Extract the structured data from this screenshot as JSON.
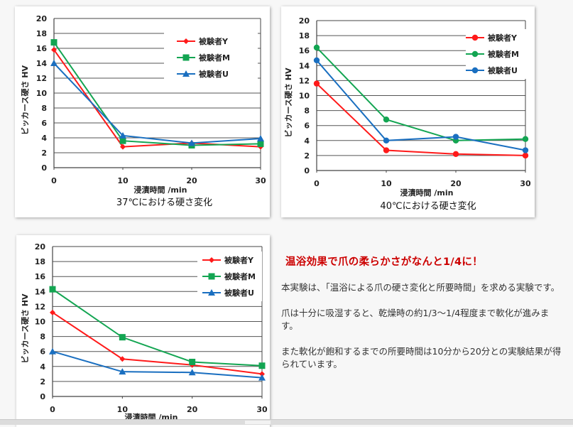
{
  "colors": {
    "subject_y": "#ff1a1a",
    "subject_m": "#13a552",
    "subject_u": "#1a6fc0",
    "headline": "#cc0000"
  },
  "chart_data": [
    {
      "type": "line",
      "title": "37℃における硬さ変化",
      "xlabel": "浸漬時間 /min",
      "ylabel": "ビッカース硬さ HV",
      "x": [
        0,
        10,
        20,
        30
      ],
      "xticks": [
        "0",
        "10",
        "20",
        "30"
      ],
      "yticks": [
        "0",
        "2",
        "4",
        "6",
        "8",
        "10",
        "12",
        "14",
        "16",
        "18",
        "20"
      ],
      "ylim": [
        0,
        20
      ],
      "grid": true,
      "legend_position": "top-right",
      "marker_style": "mixed",
      "series": [
        {
          "name": "被験者Y",
          "marker": "diamond",
          "values": [
            15.8,
            2.8,
            3.3,
            2.8
          ]
        },
        {
          "name": "被験者M",
          "marker": "square",
          "values": [
            16.8,
            3.6,
            3.0,
            3.2
          ]
        },
        {
          "name": "被験者U",
          "marker": "triangle",
          "values": [
            14.0,
            4.3,
            3.3,
            3.9
          ]
        }
      ]
    },
    {
      "type": "line",
      "title": "40℃における硬さ変化",
      "xlabel": "浸漬時間 /min",
      "ylabel": "ビッカース硬さ HV",
      "x": [
        0,
        10,
        20,
        30
      ],
      "xticks": [
        "0",
        "10",
        "20",
        "30"
      ],
      "yticks": [
        "0",
        "2",
        "4",
        "6",
        "8",
        "10",
        "12",
        "14",
        "16",
        "18",
        "20"
      ],
      "ylim": [
        0,
        20
      ],
      "grid": true,
      "legend_position": "top-right",
      "marker_style": "circle",
      "series": [
        {
          "name": "被験者Y",
          "marker": "circle",
          "values": [
            11.6,
            2.7,
            2.2,
            2.0
          ]
        },
        {
          "name": "被験者M",
          "marker": "circle",
          "values": [
            16.4,
            6.8,
            4.0,
            4.2
          ]
        },
        {
          "name": "被験者U",
          "marker": "circle",
          "values": [
            14.7,
            4.0,
            4.5,
            2.7
          ]
        }
      ]
    },
    {
      "type": "line",
      "title": "",
      "xlabel": "浸漬時間 /min",
      "ylabel": "ビッカース硬さ HV",
      "x": [
        0,
        10,
        20,
        30
      ],
      "xticks": [
        "0",
        "10",
        "20",
        "30"
      ],
      "yticks": [
        "0",
        "2",
        "4",
        "6",
        "8",
        "10",
        "12",
        "14",
        "16",
        "18",
        "20"
      ],
      "ylim": [
        0,
        20
      ],
      "grid": true,
      "legend_position": "top-right",
      "marker_style": "mixed",
      "series": [
        {
          "name": "被験者Y",
          "marker": "diamond",
          "values": [
            11.2,
            5.0,
            4.2,
            3.0
          ]
        },
        {
          "name": "被験者M",
          "marker": "square",
          "values": [
            14.3,
            7.9,
            4.6,
            4.1
          ]
        },
        {
          "name": "被験者U",
          "marker": "triangle",
          "values": [
            6.0,
            3.3,
            3.2,
            2.5
          ]
        }
      ]
    }
  ],
  "side_text": {
    "headline": "温浴効果で爪の柔らかさがなんと1/4に！",
    "paragraphs": [
      "本実験は、「温浴による爪の硬さ変化と所要時間」を求める実験です。",
      "爪は十分に吸湿すると、乾燥時の約1/3～1/4程度まで軟化が進みます。",
      "また軟化が飽和するまでの所要時間は10分から20分との実験結果が得られています。"
    ]
  }
}
